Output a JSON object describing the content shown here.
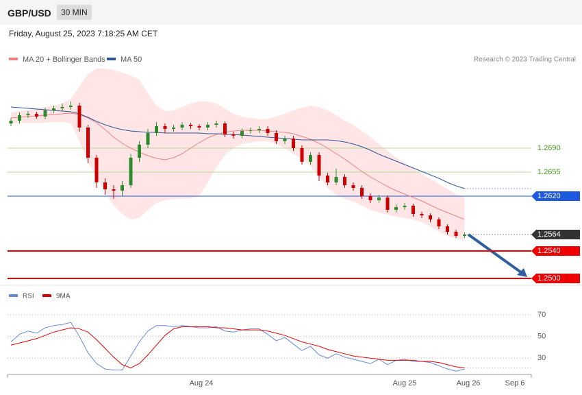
{
  "header": {
    "symbol": "GBP/USD",
    "interval": "30 MIN",
    "timestamp": "Friday, August 25, 2023 7:18:25 AM CET"
  },
  "chart_data": [
    {
      "type": "candlestick",
      "credit": "Research © 2023 Trading Central",
      "up_color": "#2e8b2e",
      "down_color": "#cc0000",
      "ylim": [
        1.2491,
        1.2846
      ],
      "candles": [
        [
          1.2726,
          1.2734,
          1.2722,
          1.273
        ],
        [
          1.273,
          1.2742,
          1.2726,
          1.2738
        ],
        [
          1.2738,
          1.2744,
          1.2734,
          1.274
        ],
        [
          1.274,
          1.2743,
          1.2733,
          1.2736
        ],
        [
          1.2736,
          1.2749,
          1.2732,
          1.2745
        ],
        [
          1.2745,
          1.2752,
          1.2741,
          1.2748
        ],
        [
          1.2748,
          1.2755,
          1.2744,
          1.275
        ],
        [
          1.275,
          1.2758,
          1.2746,
          1.2752
        ],
        [
          1.2752,
          1.2756,
          1.2714,
          1.272
        ],
        [
          1.272,
          1.2724,
          1.2668,
          1.2676
        ],
        [
          1.2676,
          1.268,
          1.2632,
          1.264
        ],
        [
          1.264,
          1.2646,
          1.2622,
          1.263
        ],
        [
          1.263,
          1.2636,
          1.2616,
          1.2628
        ],
        [
          1.2628,
          1.2642,
          1.262,
          1.2636
        ],
        [
          1.2636,
          1.2682,
          1.2632,
          1.2676
        ],
        [
          1.2676,
          1.27,
          1.267,
          1.2695
        ],
        [
          1.2695,
          1.2718,
          1.269,
          1.2712
        ],
        [
          1.2712,
          1.2728,
          1.2708,
          1.2722
        ],
        [
          1.2722,
          1.2726,
          1.2712,
          1.2718
        ],
        [
          1.2718,
          1.2724,
          1.2714,
          1.272
        ],
        [
          1.272,
          1.2728,
          1.2716,
          1.2724
        ],
        [
          1.2724,
          1.2727,
          1.2718,
          1.2722
        ],
        [
          1.2722,
          1.2725,
          1.2716,
          1.272
        ],
        [
          1.272,
          1.2728,
          1.2716,
          1.2724
        ],
        [
          1.2724,
          1.273,
          1.272,
          1.2726
        ],
        [
          1.2726,
          1.2729,
          1.2706,
          1.271
        ],
        [
          1.271,
          1.2714,
          1.2704,
          1.2708
        ],
        [
          1.2708,
          1.2719,
          1.2704,
          1.2715
        ],
        [
          1.2715,
          1.272,
          1.2711,
          1.2716
        ],
        [
          1.2716,
          1.2722,
          1.2712,
          1.2718
        ],
        [
          1.2718,
          1.2722,
          1.2708,
          1.2712
        ],
        [
          1.2712,
          1.2716,
          1.2696,
          1.27
        ],
        [
          1.27,
          1.2708,
          1.2696,
          1.2704
        ],
        [
          1.2704,
          1.2708,
          1.2686,
          1.269
        ],
        [
          1.269,
          1.2694,
          1.2666,
          1.267
        ],
        [
          1.267,
          1.2684,
          1.2666,
          1.268
        ],
        [
          1.268,
          1.2684,
          1.2642,
          1.265
        ],
        [
          1.265,
          1.2654,
          1.2636,
          1.264
        ],
        [
          1.264,
          1.266,
          1.2636,
          1.2648
        ],
        [
          1.2648,
          1.2652,
          1.2632,
          1.2636
        ],
        [
          1.2636,
          1.264,
          1.2628,
          1.2632
        ],
        [
          1.2632,
          1.2636,
          1.2616,
          1.262
        ],
        [
          1.262,
          1.2624,
          1.261,
          1.2614
        ],
        [
          1.2614,
          1.2622,
          1.261,
          1.2618
        ],
        [
          1.2618,
          1.2621,
          1.2596,
          1.26
        ],
        [
          1.26,
          1.2608,
          1.2596,
          1.2604
        ],
        [
          1.2604,
          1.261,
          1.26,
          1.2606
        ],
        [
          1.2606,
          1.2609,
          1.259,
          1.2594
        ],
        [
          1.2594,
          1.2597,
          1.2588,
          1.2592
        ],
        [
          1.2592,
          1.2595,
          1.2582,
          1.2586
        ],
        [
          1.2586,
          1.2589,
          1.2572,
          1.2576
        ],
        [
          1.2576,
          1.2579,
          1.2564,
          1.2568
        ],
        [
          1.2568,
          1.2571,
          1.2559,
          1.2562
        ],
        [
          1.2562,
          1.2567,
          1.2559,
          1.2564
        ]
      ],
      "band": {
        "color": "#ffdcdc",
        "upper": [
          1.2742,
          1.2744,
          1.2746,
          1.2748,
          1.275,
          1.2752,
          1.2755,
          1.2762,
          1.278,
          1.2798,
          1.2806,
          1.2806,
          1.2804,
          1.28,
          1.2796,
          1.279,
          1.277,
          1.2752,
          1.2744,
          1.2745,
          1.275,
          1.2755,
          1.2758,
          1.2758,
          1.2755,
          1.2748,
          1.274,
          1.2736,
          1.2734,
          1.2732,
          1.2733,
          1.2736,
          1.274,
          1.2745,
          1.2749,
          1.2752,
          1.275,
          1.2745,
          1.2738,
          1.273,
          1.2724,
          1.2715,
          1.2706,
          1.2696,
          1.2686,
          1.2676,
          1.2668,
          1.266,
          1.2652,
          1.2645,
          1.2638,
          1.263,
          1.2623,
          1.2618
        ],
        "lower": [
          1.2726,
          1.2727,
          1.2727,
          1.2727,
          1.2727,
          1.2728,
          1.2728,
          1.2726,
          1.27,
          1.267,
          1.2648,
          1.2626,
          1.2606,
          1.2594,
          1.2586,
          1.2588,
          1.26,
          1.261,
          1.2614,
          1.2616,
          1.2616,
          1.2617,
          1.262,
          1.264,
          1.2662,
          1.268,
          1.269,
          1.2696,
          1.2698,
          1.27,
          1.27,
          1.2696,
          1.269,
          1.2682,
          1.2674,
          1.2664,
          1.2648,
          1.2632,
          1.2622,
          1.2616,
          1.2612,
          1.2606,
          1.26,
          1.2596,
          1.2593,
          1.259,
          1.2588,
          1.2586,
          1.2582,
          1.2576,
          1.2568,
          1.2562,
          1.2558,
          1.2556
        ]
      },
      "series": [
        {
          "name": "MA 20 + Bollinger Bands",
          "color": "#f08080",
          "values": [
            1.2734,
            1.2735,
            1.2736,
            1.2737,
            1.2738,
            1.2739,
            1.274,
            1.2741,
            1.2739,
            1.2734,
            1.2727,
            1.2717,
            1.2706,
            1.2697,
            1.269,
            1.2684,
            1.2679,
            1.2675,
            1.2673,
            1.2676,
            1.2682,
            1.269,
            1.2698,
            1.2705,
            1.271,
            1.2713,
            1.2715,
            1.2716,
            1.2716,
            1.2716,
            1.2715,
            1.2714,
            1.2713,
            1.2711,
            1.2707,
            1.2703,
            1.2697,
            1.269,
            1.2682,
            1.2674,
            1.2665,
            1.2656,
            1.2648,
            1.2641,
            1.2634,
            1.2628,
            1.2623,
            1.2618,
            1.2613,
            1.2607,
            1.2601,
            1.2596,
            1.2591,
            1.2586
          ]
        },
        {
          "name": "MA 50",
          "color": "#2f5597",
          "values": [
            1.275,
            1.2749,
            1.2748,
            1.2747,
            1.2746,
            1.2745,
            1.2744,
            1.2743,
            1.274,
            1.2735,
            1.2729,
            1.2724,
            1.272,
            1.2717,
            1.2715,
            1.2714,
            1.2713,
            1.2713,
            1.2712,
            1.2712,
            1.2712,
            1.2712,
            1.2712,
            1.2711,
            1.2711,
            1.271,
            1.271,
            1.2709,
            1.2708,
            1.2707,
            1.2706,
            1.2705,
            1.2704,
            1.2703,
            1.2702,
            1.2702,
            1.2702,
            1.2702,
            1.2701,
            1.2699,
            1.2696,
            1.2692,
            1.2687,
            1.2681,
            1.2676,
            1.2671,
            1.2666,
            1.2661,
            1.2656,
            1.2651,
            1.2646,
            1.264,
            1.2635,
            1.2631
          ]
        }
      ],
      "levels": [
        {
          "value": 1.269,
          "label": "1.2690",
          "color": "#b7d99a",
          "text_color": "#4a9a1a",
          "tag": false,
          "width": 1
        },
        {
          "value": 1.2655,
          "label": "1.2655",
          "color": "#b7d99a",
          "text_color": "#4a9a1a",
          "tag": false,
          "width": 1
        },
        {
          "value": 1.262,
          "label": "1.2620",
          "color": "#1e5ae0",
          "text_color": "#ffffff",
          "tag": true,
          "width": 1
        },
        {
          "value": 1.2564,
          "label": "1.2564",
          "color": "#333333",
          "text_color": "#ffffff",
          "tag": true,
          "width": 1,
          "dotted": true
        },
        {
          "value": 1.254,
          "label": "1.2540",
          "color": "#ee0000",
          "text_color": "#ffffff",
          "tag": true,
          "width": 2
        },
        {
          "value": 1.25,
          "label": "1.2500",
          "color": "#ee0000",
          "text_color": "#ffffff",
          "tag": true,
          "width": 2
        }
      ],
      "xtick_labels": [
        "Aug 24",
        "Aug 25",
        "Aug 26",
        "Sep 6"
      ]
    },
    {
      "type": "line",
      "ylim": [
        15,
        82
      ],
      "yticks": [
        70,
        50,
        30
      ],
      "grid": true,
      "series": [
        {
          "name": "RSI",
          "color": "#6688dd",
          "values": [
            45,
            52,
            55,
            53,
            58,
            60,
            61,
            63,
            50,
            35,
            25,
            20,
            19,
            19,
            32,
            45,
            55,
            60,
            60,
            59,
            60,
            59,
            58,
            58,
            59,
            55,
            54,
            56,
            57,
            57,
            52,
            46,
            49,
            43,
            37,
            41,
            33,
            30,
            34,
            31,
            29,
            27,
            25,
            29,
            24,
            28,
            29,
            27,
            27,
            26,
            23,
            20,
            18,
            20
          ]
        },
        {
          "name": "9MA",
          "color": "#dd0000",
          "values": [
            42,
            44,
            46,
            48,
            51,
            54,
            56,
            58,
            57,
            54,
            47,
            39,
            31,
            24,
            21,
            25,
            33,
            42,
            51,
            57,
            59,
            59,
            59,
            59,
            58,
            58,
            57,
            56,
            56,
            56,
            55,
            53,
            51,
            48,
            45,
            43,
            41,
            38,
            36,
            34,
            32,
            31,
            30,
            29,
            28,
            28,
            28,
            28,
            27,
            27,
            26,
            24,
            22,
            21
          ]
        }
      ]
    }
  ]
}
